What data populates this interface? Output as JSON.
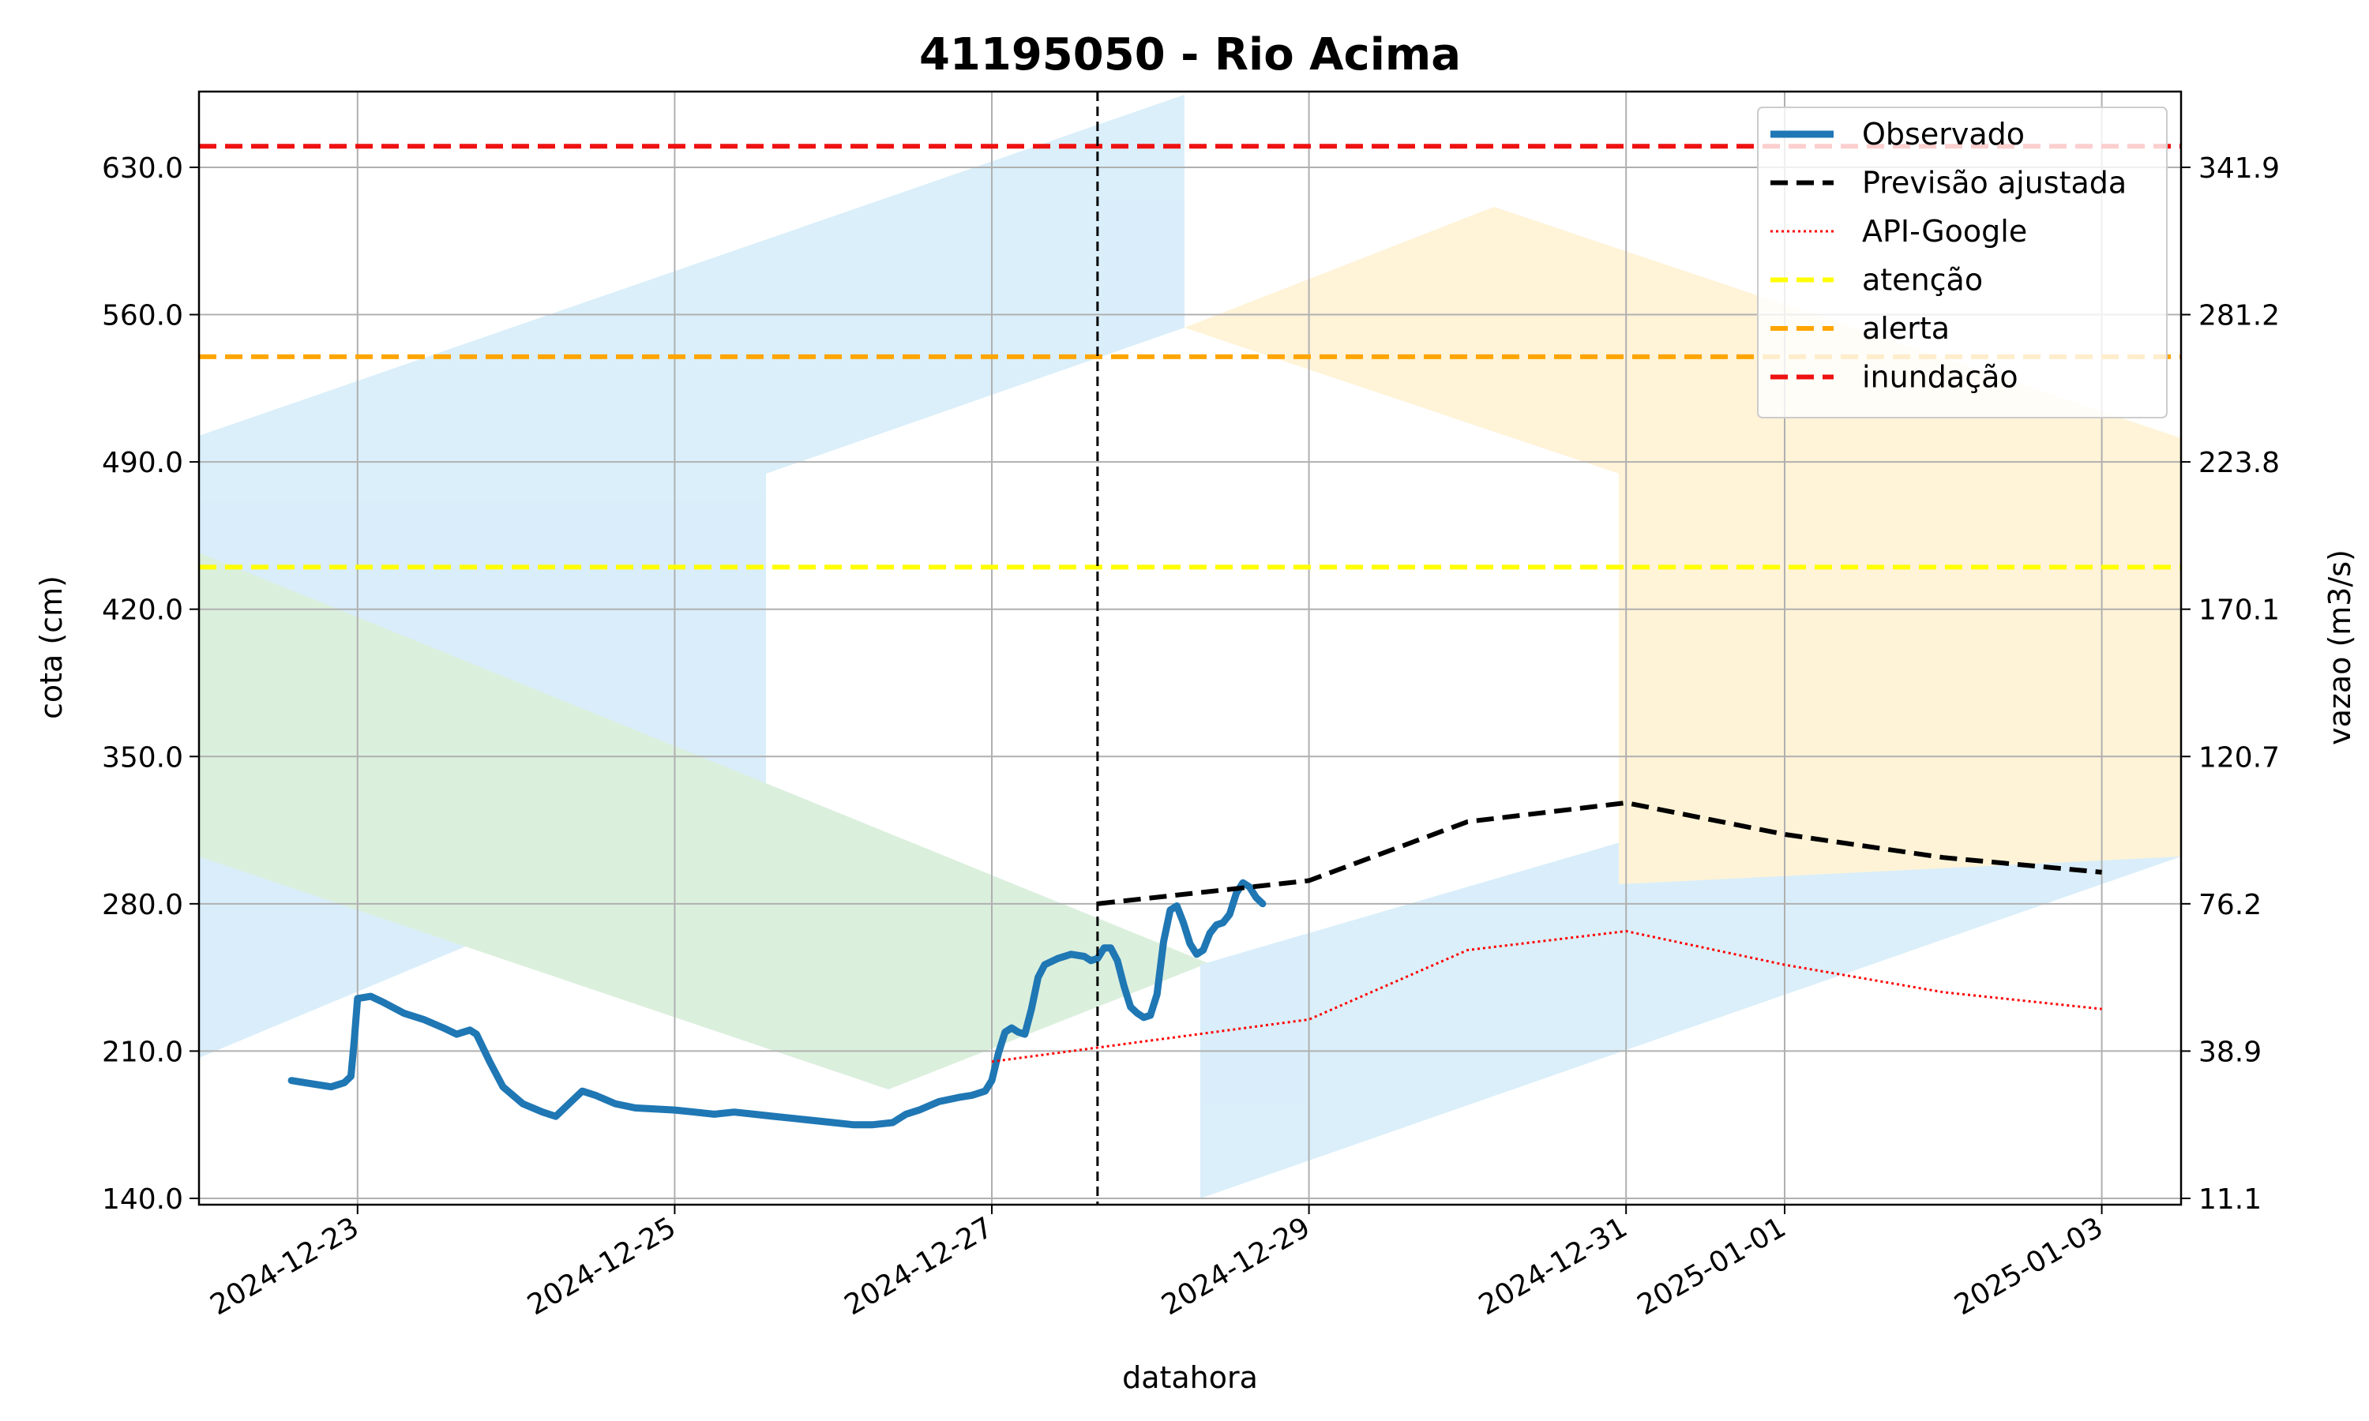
{
  "chart_data": {
    "type": "line",
    "title": "41195050 - Rio Acima",
    "xlabel": "datahora",
    "ylabel": "cota (cm)",
    "y2label": "vazao (m3/s)",
    "xlim": [
      "2024-12-22T00:00",
      "2025-01-03T12:00"
    ],
    "ylim": [
      137,
      666
    ],
    "y2lim": [
      11.1,
      365.1
    ],
    "x_ticks": [
      "2024-12-23",
      "2024-12-25",
      "2024-12-27",
      "2024-12-29",
      "2024-12-31",
      "2025-01-01",
      "2025-01-03"
    ],
    "y_ticks": [
      "140.0",
      "210.0",
      "280.0",
      "350.0",
      "420.0",
      "490.0",
      "560.0",
      "630.0"
    ],
    "y_tick_values": [
      140,
      210,
      280,
      350,
      420,
      490,
      560,
      630
    ],
    "y2_ticks": [
      "11.1",
      "38.9",
      "76.2",
      "120.7",
      "170.1",
      "223.8",
      "281.2",
      "341.9"
    ],
    "y2_tick_values": [
      140,
      210,
      280,
      350,
      420,
      490,
      560,
      630
    ],
    "grid": true,
    "legend_position": "top-right",
    "forecast_start": "2024-12-27T16:00",
    "thresholds": [
      {
        "name": "atenção",
        "value": 440,
        "color": "#ffff00"
      },
      {
        "name": "alerta",
        "value": 540,
        "color": "#ffa500"
      },
      {
        "name": "inundação",
        "value": 640,
        "color": "#ee1111"
      }
    ],
    "series": [
      {
        "name": "Observado",
        "color": "#1f77b4",
        "style": "solid",
        "points": [
          [
            "2024-12-22T14:00",
            196
          ],
          [
            "2024-12-22T16:00",
            195
          ],
          [
            "2024-12-22T18:00",
            194
          ],
          [
            "2024-12-22T20:00",
            193
          ],
          [
            "2024-12-22T22:00",
            195
          ],
          [
            "2024-12-22T23:00",
            198
          ],
          [
            "2024-12-22T23:30",
            215
          ],
          [
            "2024-12-23T00:00",
            235
          ],
          [
            "2024-12-23T02:00",
            236
          ],
          [
            "2024-12-23T04:00",
            233
          ],
          [
            "2024-12-23T07:00",
            228
          ],
          [
            "2024-12-23T10:00",
            225
          ],
          [
            "2024-12-23T13:00",
            221
          ],
          [
            "2024-12-23T15:00",
            218
          ],
          [
            "2024-12-23T17:00",
            220
          ],
          [
            "2024-12-23T18:00",
            218
          ],
          [
            "2024-12-23T20:00",
            205
          ],
          [
            "2024-12-23T22:00",
            193
          ],
          [
            "2024-12-24T01:00",
            185
          ],
          [
            "2024-12-24T04:00",
            181
          ],
          [
            "2024-12-24T06:00",
            179
          ],
          [
            "2024-12-24T08:00",
            185
          ],
          [
            "2024-12-24T10:00",
            191
          ],
          [
            "2024-12-24T12:00",
            189
          ],
          [
            "2024-12-24T15:00",
            185
          ],
          [
            "2024-12-24T18:00",
            183
          ],
          [
            "2024-12-25T00:00",
            182
          ],
          [
            "2024-12-25T03:00",
            181
          ],
          [
            "2024-12-25T06:00",
            180
          ],
          [
            "2024-12-25T09:00",
            181
          ],
          [
            "2024-12-25T12:00",
            180
          ],
          [
            "2024-12-25T15:00",
            179
          ],
          [
            "2024-12-25T18:00",
            178
          ],
          [
            "2024-12-25T21:00",
            177
          ],
          [
            "2024-12-26T00:00",
            176
          ],
          [
            "2024-12-26T03:00",
            175
          ],
          [
            "2024-12-26T06:00",
            175
          ],
          [
            "2024-12-26T09:00",
            176
          ],
          [
            "2024-12-26T11:00",
            180
          ],
          [
            "2024-12-26T13:00",
            182
          ],
          [
            "2024-12-26T16:00",
            186
          ],
          [
            "2024-12-26T19:00",
            188
          ],
          [
            "2024-12-26T21:00",
            189
          ],
          [
            "2024-12-26T23:00",
            191
          ],
          [
            "2024-12-27T00:00",
            196
          ],
          [
            "2024-12-27T01:00",
            209
          ],
          [
            "2024-12-27T02:00",
            219
          ],
          [
            "2024-12-27T03:00",
            221
          ],
          [
            "2024-12-27T04:00",
            219
          ],
          [
            "2024-12-27T05:00",
            218
          ],
          [
            "2024-12-27T06:00",
            230
          ],
          [
            "2024-12-27T07:00",
            245
          ],
          [
            "2024-12-27T08:00",
            251
          ],
          [
            "2024-12-27T10:00",
            254
          ],
          [
            "2024-12-27T12:00",
            256
          ],
          [
            "2024-12-27T14:00",
            255
          ],
          [
            "2024-12-27T15:00",
            253
          ],
          [
            "2024-12-27T16:00",
            254
          ],
          [
            "2024-12-27T17:00",
            259
          ],
          [
            "2024-12-27T18:00",
            259
          ],
          [
            "2024-12-27T19:00",
            253
          ],
          [
            "2024-12-27T20:00",
            241
          ],
          [
            "2024-12-27T21:00",
            231
          ],
          [
            "2024-12-27T22:00",
            228
          ],
          [
            "2024-12-27T23:00",
            226
          ],
          [
            "2024-12-28T00:00",
            227
          ],
          [
            "2024-12-28T01:00",
            237
          ],
          [
            "2024-12-28T02:00",
            262
          ],
          [
            "2024-12-28T03:00",
            277
          ],
          [
            "2024-12-28T04:00",
            279
          ],
          [
            "2024-12-28T05:00",
            271
          ],
          [
            "2024-12-28T06:00",
            261
          ],
          [
            "2024-12-28T07:00",
            256
          ],
          [
            "2024-12-28T08:00",
            258
          ],
          [
            "2024-12-28T09:00",
            266
          ],
          [
            "2024-12-28T10:00",
            270
          ],
          [
            "2024-12-28T11:00",
            271
          ],
          [
            "2024-12-28T12:00",
            275
          ],
          [
            "2024-12-28T13:00",
            285
          ],
          [
            "2024-12-28T14:00",
            290
          ],
          [
            "2024-12-28T15:00",
            288
          ],
          [
            "2024-12-28T16:00",
            283
          ],
          [
            "2024-12-28T17:00",
            280
          ]
        ]
      },
      {
        "name": "Previsão ajustada",
        "color": "#000000",
        "style": "dashed",
        "points": [
          [
            "2024-12-27T16:00",
            280
          ],
          [
            "2024-12-29T00:00",
            291
          ],
          [
            "2024-12-30T00:00",
            319
          ],
          [
            "2024-12-31T00:00",
            328
          ],
          [
            "2025-01-01T00:00",
            313
          ],
          [
            "2025-01-02T00:00",
            302
          ],
          [
            "2025-01-03T00:00",
            295
          ]
        ]
      },
      {
        "name": "API-Google",
        "color": "#ff0000",
        "style": "dotted",
        "points": [
          [
            "2024-12-27T00:00",
            205
          ],
          [
            "2024-12-29T00:00",
            225
          ],
          [
            "2024-12-30T00:00",
            258
          ],
          [
            "2024-12-31T00:00",
            267
          ],
          [
            "2025-01-01T00:00",
            251
          ],
          [
            "2025-01-02T00:00",
            238
          ],
          [
            "2025-01-03T00:00",
            230
          ]
        ]
      }
    ]
  }
}
